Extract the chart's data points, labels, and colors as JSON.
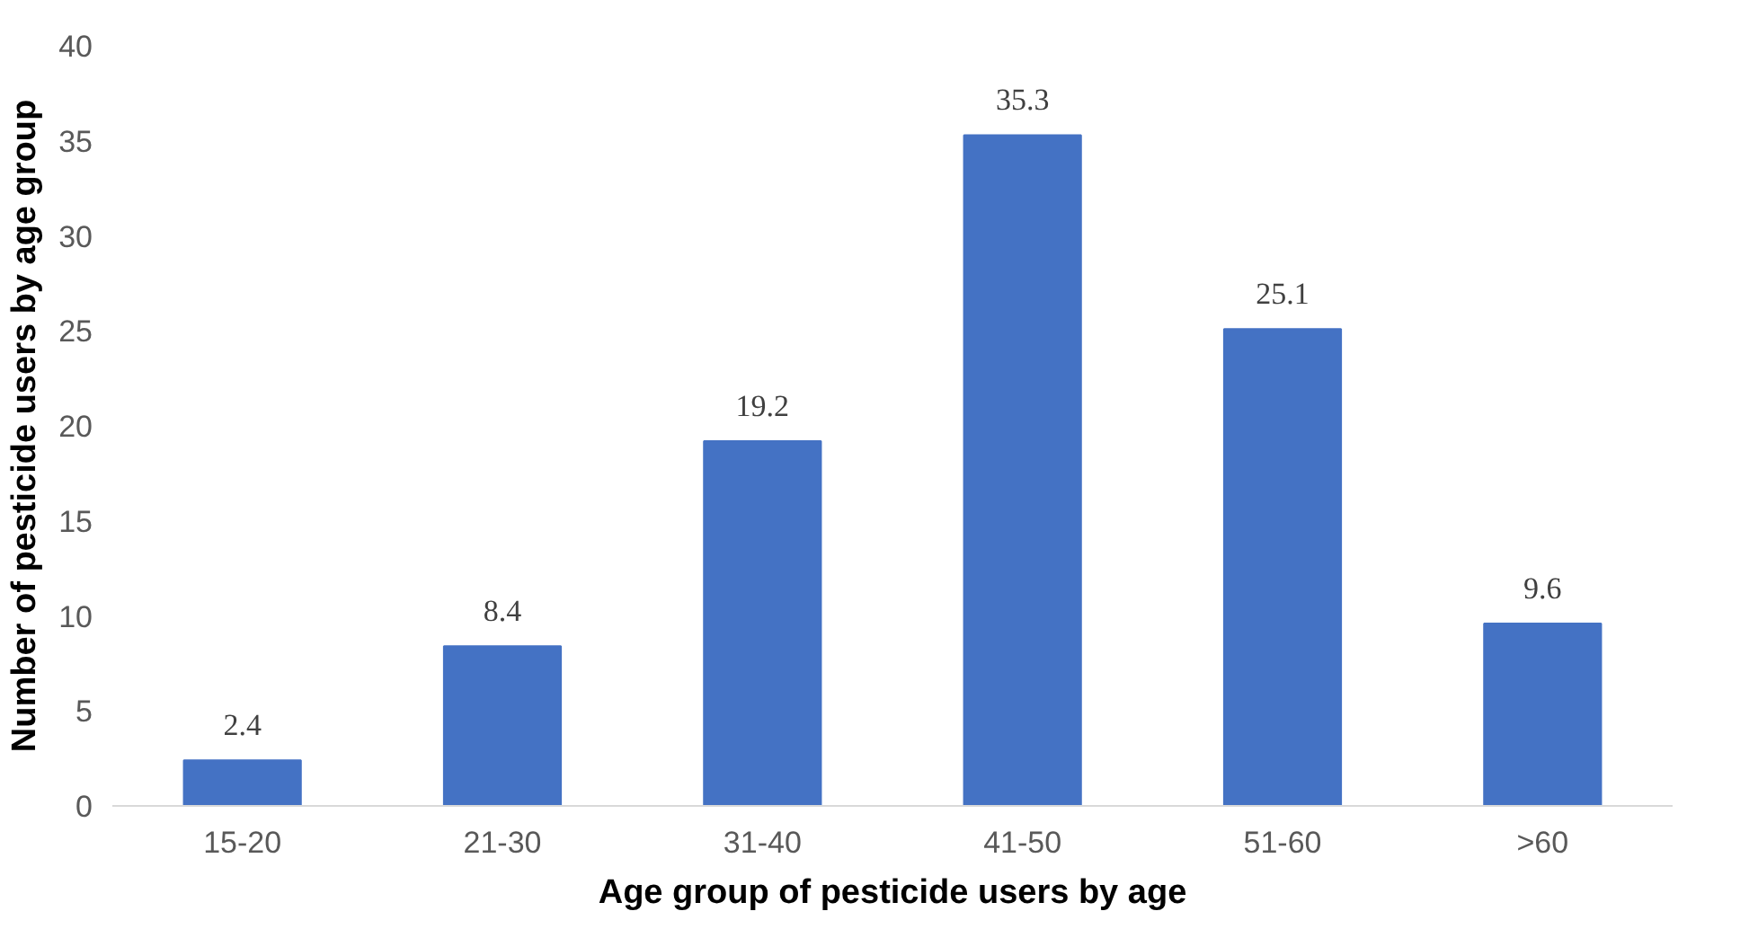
{
  "chart_data": {
    "type": "bar",
    "xlabel": "Age group of pesticide users by age",
    "ylabel": "Number of pesticide users by age group",
    "categories": [
      "15-20",
      "21-30",
      "31-40",
      "41-50",
      "51-60",
      ">60"
    ],
    "values": [
      2.4,
      8.4,
      19.2,
      35.3,
      25.1,
      9.6
    ],
    "color": "#4472c4",
    "ylim": [
      0,
      40
    ],
    "yticks": [
      0,
      5,
      10,
      15,
      20,
      25,
      30,
      35,
      40
    ],
    "data_labels": true,
    "grid": false
  }
}
